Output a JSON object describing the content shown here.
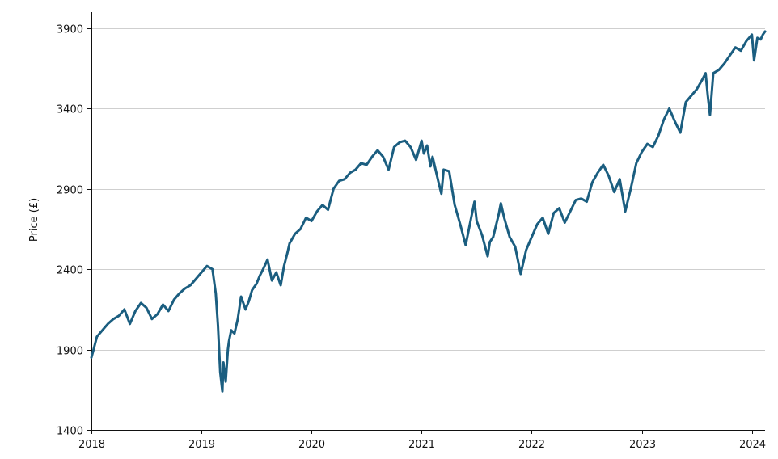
{
  "chart_data": {
    "type": "line",
    "title": "",
    "xlabel": "",
    "ylabel": "Price (£)",
    "xlim": [
      2018.0,
      2024.12
    ],
    "ylim": [
      1400,
      4000
    ],
    "yticks": [
      1400,
      1900,
      2400,
      2900,
      3400,
      3900
    ],
    "ytick_labels": [
      "1400",
      "1900",
      "2400",
      "2900",
      "3400",
      "3900"
    ],
    "xticks": [
      2018,
      2019,
      2020,
      2021,
      2022,
      2023,
      2024
    ],
    "xtick_labels": [
      "2018",
      "2019",
      "2020",
      "2021",
      "2022",
      "2023",
      "2024"
    ],
    "grid": "horizontal",
    "colors": {
      "line": "#1b5e80",
      "grid": "#cfcfcf",
      "axis": "#111111"
    },
    "series": [
      {
        "name": "Price",
        "x": [
          2018.0,
          2018.02,
          2018.05,
          2018.1,
          2018.15,
          2018.2,
          2018.25,
          2018.3,
          2018.35,
          2018.4,
          2018.45,
          2018.5,
          2018.55,
          2018.6,
          2018.65,
          2018.7,
          2018.75,
          2018.8,
          2018.85,
          2018.9,
          2018.95,
          2019.0,
          2019.05,
          2019.1,
          2019.13,
          2019.15,
          2019.17,
          2019.19,
          2019.2,
          2019.22,
          2019.24,
          2019.25,
          2019.27,
          2019.3,
          2019.33,
          2019.36,
          2019.4,
          2019.43,
          2019.46,
          2019.5,
          2019.53,
          2019.56,
          2019.6,
          2019.64,
          2019.68,
          2019.72,
          2019.75,
          2019.78,
          2019.8,
          2019.85,
          2019.9,
          2019.95,
          2020.0,
          2020.05,
          2020.1,
          2020.15,
          2020.2,
          2020.25,
          2020.3,
          2020.35,
          2020.4,
          2020.45,
          2020.5,
          2020.55,
          2020.6,
          2020.65,
          2020.7,
          2020.75,
          2020.8,
          2020.85,
          2020.9,
          2020.95,
          2021.0,
          2021.02,
          2021.05,
          2021.08,
          2021.1,
          2021.15,
          2021.18,
          2021.2,
          2021.25,
          2021.3,
          2021.35,
          2021.4,
          2021.45,
          2021.48,
          2021.5,
          2021.55,
          2021.6,
          2021.62,
          2021.65,
          2021.7,
          2021.72,
          2021.75,
          2021.8,
          2021.85,
          2021.9,
          2021.95,
          2022.0,
          2022.05,
          2022.1,
          2022.15,
          2022.2,
          2022.25,
          2022.3,
          2022.35,
          2022.4,
          2022.45,
          2022.5,
          2022.55,
          2022.6,
          2022.65,
          2022.7,
          2022.75,
          2022.8,
          2022.85,
          2022.9,
          2022.95,
          2023.0,
          2023.05,
          2023.1,
          2023.15,
          2023.2,
          2023.25,
          2023.3,
          2023.35,
          2023.4,
          2023.45,
          2023.5,
          2023.55,
          2023.58,
          2023.6,
          2023.62,
          2023.65,
          2023.7,
          2023.75,
          2023.8,
          2023.85,
          2023.9,
          2023.95,
          2024.0,
          2024.02,
          2024.05,
          2024.08,
          2024.1,
          2024.12
        ],
        "values": [
          1850,
          1900,
          1980,
          2020,
          2060,
          2090,
          2110,
          2150,
          2060,
          2140,
          2190,
          2160,
          2090,
          2120,
          2180,
          2140,
          2210,
          2250,
          2280,
          2300,
          2340,
          2380,
          2420,
          2400,
          2250,
          2050,
          1760,
          1640,
          1820,
          1700,
          1900,
          1950,
          2020,
          2000,
          2090,
          2230,
          2150,
          2200,
          2270,
          2310,
          2360,
          2400,
          2460,
          2330,
          2380,
          2300,
          2420,
          2500,
          2560,
          2620,
          2650,
          2720,
          2700,
          2760,
          2800,
          2770,
          2900,
          2950,
          2960,
          3000,
          3020,
          3060,
          3050,
          3100,
          3140,
          3100,
          3020,
          3160,
          3190,
          3200,
          3160,
          3080,
          3200,
          3120,
          3170,
          3040,
          3100,
          2950,
          2870,
          3020,
          3010,
          2800,
          2680,
          2550,
          2720,
          2820,
          2700,
          2610,
          2480,
          2570,
          2600,
          2740,
          2810,
          2720,
          2600,
          2540,
          2370,
          2520,
          2600,
          2680,
          2720,
          2620,
          2750,
          2780,
          2690,
          2760,
          2830,
          2840,
          2820,
          2940,
          3000,
          3050,
          2980,
          2880,
          2960,
          2760,
          2900,
          3060,
          3130,
          3180,
          3160,
          3230,
          3330,
          3400,
          3320,
          3250,
          3440,
          3480,
          3520,
          3580,
          3620,
          3480,
          3360,
          3620,
          3640,
          3680,
          3730,
          3780,
          3760,
          3820,
          3860,
          3700,
          3840,
          3830,
          3860,
          3880
        ]
      }
    ]
  }
}
